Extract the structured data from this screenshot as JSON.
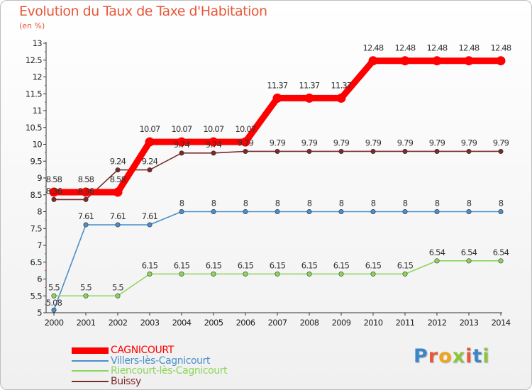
{
  "page": {
    "title": "Evolution du Taux de Taxe d'Habitation",
    "subtitle": "(en %)",
    "logo": "Proxiti",
    "logo_colors": [
      "#3a86c8",
      "#e8573a",
      "#f2a31b",
      "#8cc63f",
      "#e8573a",
      "#3a86c8",
      "#8cc63f"
    ]
  },
  "chart_data": {
    "type": "line",
    "title": "Evolution du Taux de Taxe d'Habitation",
    "ylabel": "(en %)",
    "xlabel": "",
    "x": [
      2000,
      2001,
      2002,
      2003,
      2004,
      2005,
      2006,
      2007,
      2008,
      2009,
      2010,
      2011,
      2012,
      2013,
      2014
    ],
    "ylim": [
      5,
      13
    ],
    "yticks": [
      5,
      5.5,
      6,
      6.5,
      7,
      7.5,
      8,
      8.5,
      9,
      9.5,
      10,
      10.5,
      11,
      11.5,
      12,
      12.5,
      13
    ],
    "grid": false,
    "legend_position": "bottom-left",
    "series": [
      {
        "name": "CAGNICOURT",
        "color": "#ff0000",
        "values": [
          8.58,
          8.58,
          8.58,
          10.07,
          10.07,
          10.07,
          10.07,
          11.37,
          11.37,
          11.37,
          12.48,
          12.48,
          12.48,
          12.48,
          12.48
        ],
        "labels": [
          "8.58",
          "8.58",
          "8.58",
          "10.07",
          "10.07",
          "10.07",
          "10.07",
          "11.37",
          "11.37",
          "11.37",
          "12.48",
          "12.48",
          "12.48",
          "12.48",
          "12.48"
        ],
        "emphasis": true
      },
      {
        "name": "Villers-lès-Cagnicourt",
        "color": "#4a8fca",
        "values": [
          5.08,
          7.61,
          7.61,
          7.61,
          8,
          8,
          8,
          8,
          8,
          8,
          8,
          8,
          8,
          8,
          8
        ],
        "labels": [
          "5.08",
          "7.61",
          "7.61",
          "7.61",
          "8",
          "8",
          "8",
          "8",
          "8",
          "8",
          "8",
          "8",
          "8",
          "8",
          "8"
        ]
      },
      {
        "name": "Riencourt-lès-Cagnicourt",
        "color": "#8cd65a",
        "values": [
          5.5,
          5.5,
          5.5,
          6.15,
          6.15,
          6.15,
          6.15,
          6.15,
          6.15,
          6.15,
          6.15,
          6.15,
          6.54,
          6.54,
          6.54
        ],
        "labels": [
          "5.5",
          "5.5",
          "5.5",
          "6.15",
          "6.15",
          "6.15",
          "6.15",
          "6.15",
          "6.15",
          "6.15",
          "6.15",
          "6.15",
          "6.54",
          "6.54",
          "6.54"
        ]
      },
      {
        "name": "Buissy",
        "color": "#7b2a2a",
        "values": [
          8.36,
          8.36,
          9.24,
          9.24,
          9.74,
          9.74,
          9.79,
          9.79,
          9.79,
          9.79,
          9.79,
          9.79,
          9.79,
          9.79,
          9.79
        ],
        "labels": [
          "8.36",
          "8.36",
          "9.24",
          "9.24",
          "9.74",
          "9.74",
          "9.79",
          "9.79",
          "9.79",
          "9.79",
          "9.79",
          "9.79",
          "9.79",
          "9.79",
          "9.79"
        ]
      }
    ]
  }
}
